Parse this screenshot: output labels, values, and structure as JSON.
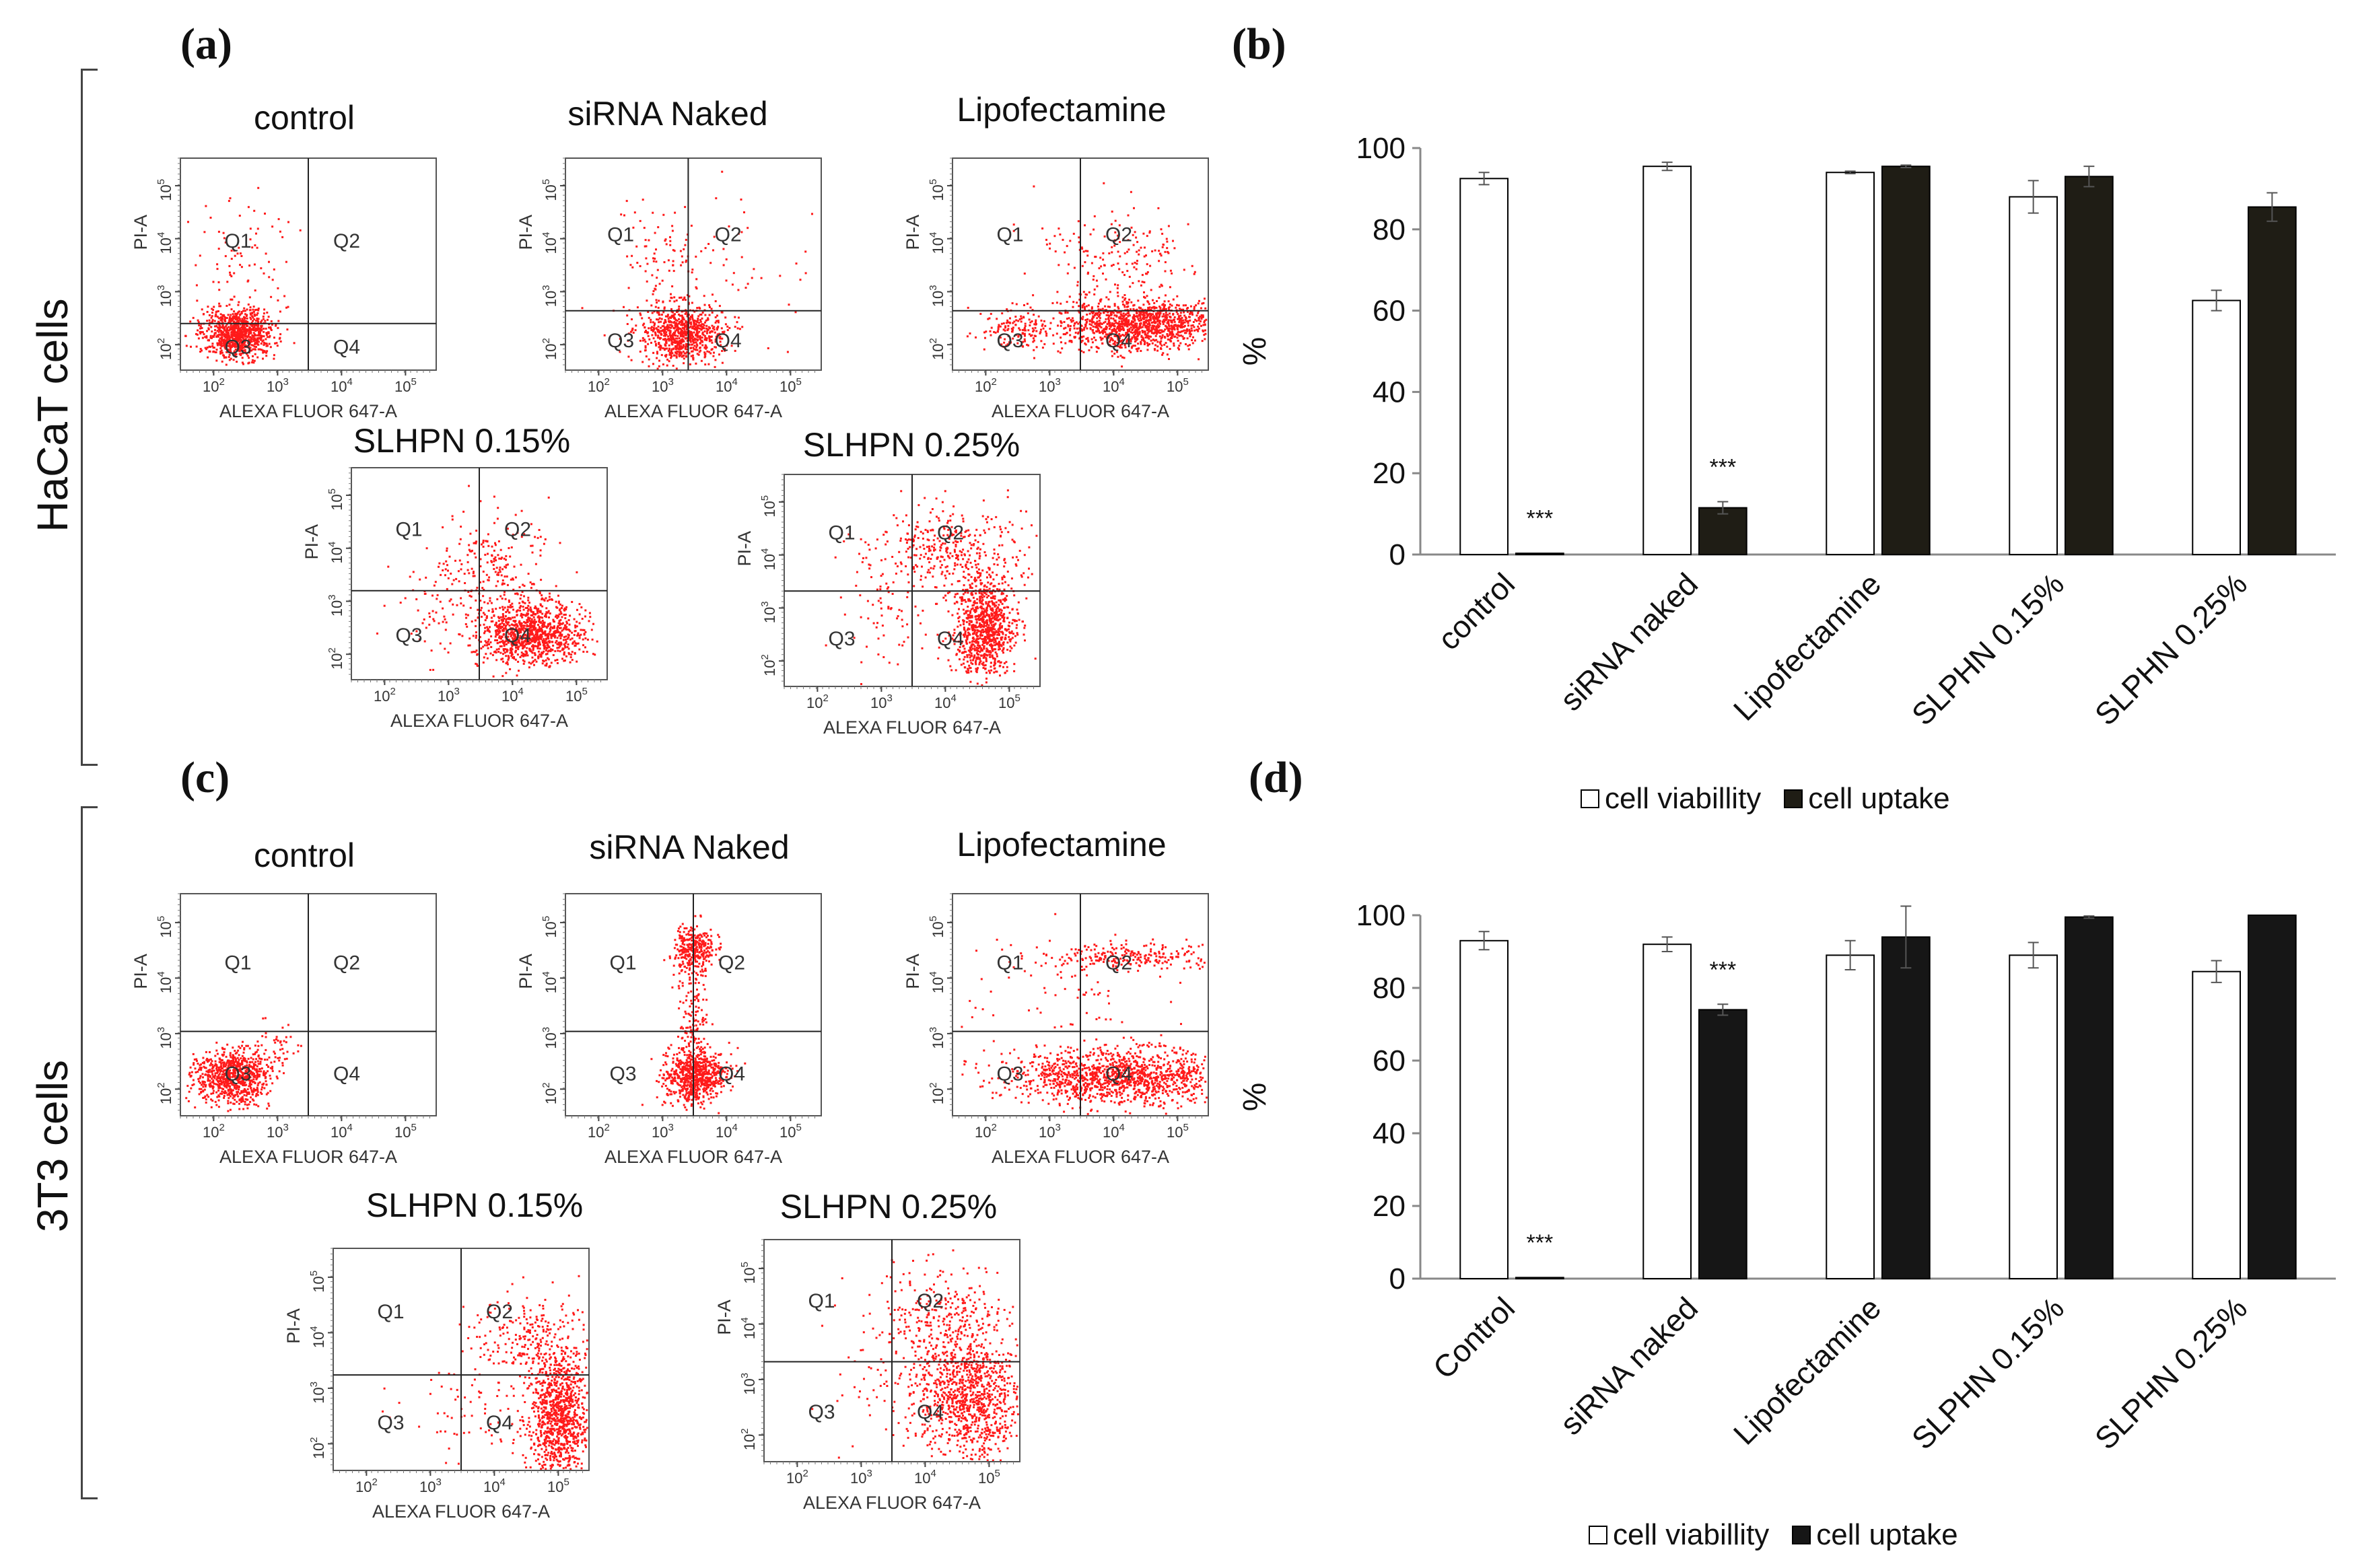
{
  "panels": {
    "a": "(a)",
    "b": "(b)",
    "c": "(c)",
    "d": "(d)"
  },
  "row_labels": {
    "top": "HaCaT cells",
    "bottom": "3T3 cells"
  },
  "flow_axes": {
    "x_label": "ALEXA FLUOR 647-A",
    "y_label": "PI-A",
    "x_ticks": [
      "10^2",
      "10^3",
      "10^4",
      "10^5"
    ],
    "y_ticks": [
      "10^2",
      "10^3",
      "10^4",
      "10^5"
    ],
    "quadrants": [
      "Q1",
      "Q2",
      "Q3",
      "Q4"
    ]
  },
  "flow_plots": {
    "haca": [
      {
        "title": "control",
        "pattern": "control"
      },
      {
        "title": "siRNA Naked",
        "pattern": "naked"
      },
      {
        "title": "Lipofectamine",
        "pattern": "lipo"
      },
      {
        "title": "SLHPN 0.15%",
        "pattern": "slhpn15"
      },
      {
        "title": "SLHPN 0.25%",
        "pattern": "slhpn25"
      }
    ],
    "t3": [
      {
        "title": "control",
        "pattern": "control"
      },
      {
        "title": "siRNA Naked",
        "pattern": "naked3t3"
      },
      {
        "title": "Lipofectamine",
        "pattern": "lipo3t3"
      },
      {
        "title": "SLHPN 0.15%",
        "pattern": "slhpn15_3t3"
      },
      {
        "title": "SLHPN 0.25%",
        "pattern": "slhpn25_3t3"
      }
    ]
  },
  "colors": {
    "dots": "#ff1a1a",
    "viability_fill": "#ffffff",
    "uptake_fill_b": "#1f1d15",
    "uptake_fill_d": "#161616",
    "axis": "#888888"
  },
  "chart_data": [
    {
      "id": "b",
      "type": "bar",
      "title": "",
      "xlabel": "",
      "ylabel": "%",
      "ylim": [
        0,
        100
      ],
      "yticks": [
        0,
        20,
        40,
        60,
        80,
        100
      ],
      "categories": [
        "control",
        "siRNA naked",
        "Lipofectamine",
        "SLPHN 0.15%",
        "SLPHN 0.25%"
      ],
      "series": [
        {
          "name": "cell viabillity",
          "values": [
            92.5,
            95.5,
            94.0,
            88.0,
            62.5
          ],
          "errors": [
            1.5,
            1.0,
            0.3,
            4.0,
            2.5
          ]
        },
        {
          "name": "cell uptake",
          "values": [
            0.3,
            11.5,
            95.5,
            93.0,
            85.5
          ],
          "errors": [
            0.1,
            1.5,
            0.3,
            2.5,
            3.5
          ]
        }
      ],
      "annotations": [
        {
          "category_index": 0,
          "series_index": 1,
          "text": "***"
        },
        {
          "category_index": 1,
          "series_index": 1,
          "text": "***"
        }
      ],
      "legend": {
        "position": "bottom",
        "labels": [
          "cell viabillity",
          "cell uptake"
        ]
      }
    },
    {
      "id": "d",
      "type": "bar",
      "title": "",
      "xlabel": "",
      "ylabel": "%",
      "ylim": [
        0,
        100
      ],
      "yticks": [
        0,
        20,
        40,
        60,
        80,
        100
      ],
      "categories": [
        "Control",
        "siRNA naked",
        "Lipofectamine",
        "SLPHN 0.15%",
        "SLPHN 0.25%"
      ],
      "series": [
        {
          "name": "cell viabillity",
          "values": [
            93.0,
            92.0,
            89.0,
            89.0,
            84.5
          ],
          "errors": [
            2.5,
            2.0,
            4.0,
            3.5,
            3.0
          ]
        },
        {
          "name": "cell uptake",
          "values": [
            0.3,
            74.0,
            94.0,
            99.5,
            100.0
          ],
          "errors": [
            0.1,
            1.5,
            8.5,
            0.3,
            0.2
          ]
        }
      ],
      "annotations": [
        {
          "category_index": 0,
          "series_index": 1,
          "text": "***"
        },
        {
          "category_index": 1,
          "series_index": 1,
          "text": "***"
        }
      ],
      "legend": {
        "position": "bottom",
        "labels": [
          "cell viabillity",
          "cell uptake"
        ]
      }
    }
  ]
}
